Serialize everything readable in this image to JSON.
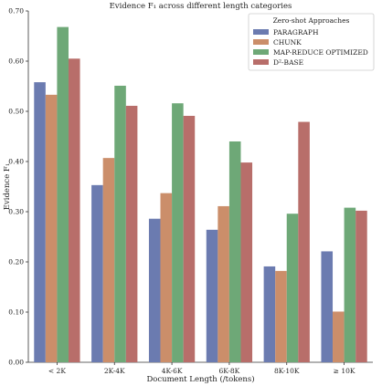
{
  "chart_data": {
    "type": "bar",
    "title": "Evidence F₁ across different length categories",
    "xlabel": "Document Length (/tokens)",
    "ylabel": "Evidence F₁",
    "categories": [
      "< 2K",
      "2K-4K",
      "4K-6K",
      "6K-8K",
      "8K-10K",
      "≥ 10K"
    ],
    "ylim": [
      0,
      0.7
    ],
    "yticks": [
      "0.00",
      "0.10",
      "0.20",
      "0.30",
      "0.40",
      "0.50",
      "0.60",
      "0.70"
    ],
    "legend": {
      "title": "Zero-shot Approaches",
      "placement": "top-right"
    },
    "series": [
      {
        "name": "PARAGRAPH",
        "color": "#6b7bb0",
        "values": [
          0.558,
          0.353,
          0.286,
          0.264,
          0.191,
          0.221
        ]
      },
      {
        "name": "CHUNK",
        "color": "#cb8e6a",
        "values": [
          0.533,
          0.407,
          0.337,
          0.311,
          0.182,
          0.101
        ]
      },
      {
        "name": "MAP-REDUCE OPTIMIZED",
        "color": "#6ea877",
        "values": [
          0.668,
          0.551,
          0.516,
          0.44,
          0.296,
          0.308
        ]
      },
      {
        "name": "D²-BASE",
        "color": "#b86e6a",
        "values": [
          0.605,
          0.511,
          0.491,
          0.398,
          0.479,
          0.302
        ]
      }
    ],
    "grid": false
  }
}
